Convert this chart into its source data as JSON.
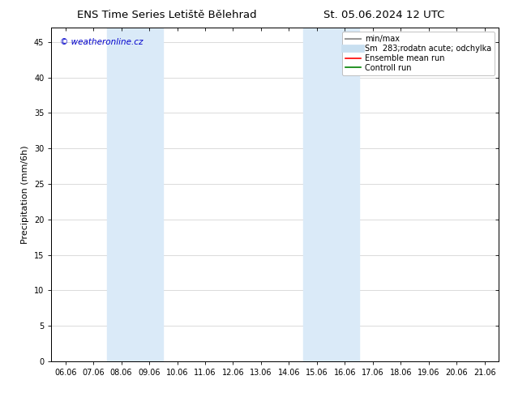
{
  "title_left": "ENS Time Series Letiště Bělehrad",
  "title_right": "St. 05.06.2024 12 UTC",
  "ylabel": "Precipitation (mm/6h)",
  "watermark": "© weatheronline.cz",
  "xtick_labels": [
    "06.06",
    "07.06",
    "08.06",
    "09.06",
    "10.06",
    "11.06",
    "12.06",
    "13.06",
    "14.06",
    "15.06",
    "16.06",
    "17.06",
    "18.06",
    "19.06",
    "20.06",
    "21.06"
  ],
  "ytick_values": [
    0,
    5,
    10,
    15,
    20,
    25,
    30,
    35,
    40,
    45
  ],
  "ylim": [
    0,
    47
  ],
  "xlim": [
    -0.5,
    15.5
  ],
  "shaded_regions": [
    {
      "xmin": 1.5,
      "xmax": 3.5,
      "color": "#daeaf8"
    },
    {
      "xmin": 8.5,
      "xmax": 10.5,
      "color": "#daeaf8"
    }
  ],
  "legend_entries": [
    {
      "label": "min/max",
      "color": "#999999",
      "lw": 1.5,
      "type": "line"
    },
    {
      "label": "Sm  283;rodatn acute; odchylka",
      "color": "#c8dff0",
      "lw": 7,
      "type": "line"
    },
    {
      "label": "Ensemble mean run",
      "color": "red",
      "lw": 1.2,
      "type": "line"
    },
    {
      "label": "Controll run",
      "color": "green",
      "lw": 1.2,
      "type": "line"
    }
  ],
  "bg_color": "#ffffff",
  "grid_color": "#cccccc",
  "border_color": "#000000",
  "title_fontsize": 9.5,
  "label_fontsize": 8,
  "tick_fontsize": 7,
  "legend_fontsize": 7
}
